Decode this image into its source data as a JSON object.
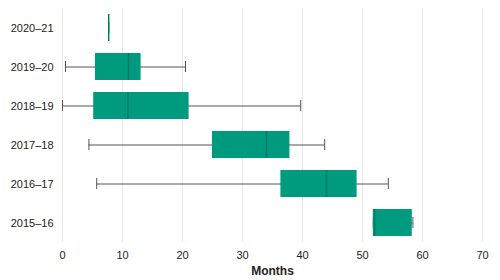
{
  "chart_data": {
    "type": "boxplot",
    "orientation": "horizontal",
    "x_label": "Months",
    "categories": [
      "2020–21",
      "2019–20",
      "2018–19",
      "2017–18",
      "2016–17",
      "2015–16"
    ],
    "min": [
      7.7,
      0.5,
      0,
      4.4,
      5.7,
      51.8
    ],
    "q1": [
      7.7,
      5.5,
      5.2,
      25,
      36.4,
      51.8
    ],
    "median": [
      7.7,
      11,
      10.9,
      34,
      44,
      52
    ],
    "q3": [
      7.7,
      13.1,
      21.1,
      37.9,
      49.1,
      58.3
    ],
    "max": [
      7.7,
      20.5,
      39.7,
      43.7,
      54.3,
      58.4
    ],
    "color": "#009a7e",
    "xlim": [
      0,
      70
    ],
    "xticks": [
      0,
      10,
      20,
      30,
      40,
      50,
      60,
      70
    ],
    "grid": true
  }
}
